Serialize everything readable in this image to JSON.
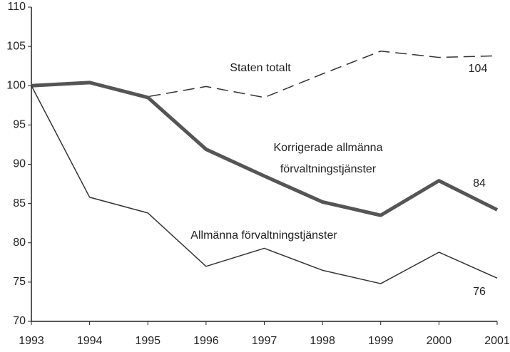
{
  "chart_data": {
    "type": "line",
    "x": [
      1993,
      1994,
      1995,
      1996,
      1997,
      1998,
      1999,
      2000,
      2001
    ],
    "xlim": [
      1993,
      2001
    ],
    "xticks": [
      1993,
      1994,
      1995,
      1996,
      1997,
      1998,
      1999,
      2000,
      2001
    ],
    "ylim": [
      70,
      110
    ],
    "yticks": [
      70,
      75,
      80,
      85,
      90,
      95,
      100,
      105,
      110
    ],
    "grid": false,
    "series": [
      {
        "name": "Staten totalt",
        "color": "#333333",
        "line_style": "dashed",
        "line_width": 1.5,
        "end_label": "104",
        "values": [
          100,
          100.4,
          98.6,
          99.9,
          98.5,
          101.5,
          104.4,
          103.6,
          103.8
        ]
      },
      {
        "name": "Korrigerade allmänna förvaltningstjänster",
        "color": "#555555",
        "line_style": "solid",
        "line_width": 5,
        "end_label": "84",
        "values": [
          100,
          100.4,
          98.5,
          91.9,
          88.5,
          85.2,
          83.5,
          87.9,
          84.2
        ]
      },
      {
        "name": "Allmänna förvaltningstjänster",
        "color": "#333333",
        "line_style": "solid",
        "line_width": 1.5,
        "end_label": "76",
        "values": [
          100,
          85.8,
          83.8,
          77.0,
          79.3,
          76.5,
          74.8,
          78.8,
          75.5
        ]
      }
    ]
  }
}
